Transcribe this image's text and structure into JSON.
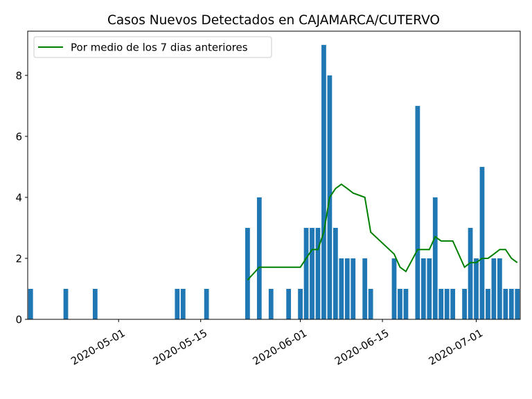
{
  "chart_data": {
    "type": "bar",
    "title": "Casos Nuevos Detectados en CAJAMARCA/CUTERVO",
    "xlabel": "",
    "ylabel": "",
    "x_start": "2020-04-16",
    "x_end": "2020-07-08",
    "ylim": [
      0,
      9.45
    ],
    "yticks": [
      0,
      2,
      4,
      6,
      8
    ],
    "xticks": [
      "2020-05-01",
      "2020-05-15",
      "2020-06-01",
      "2020-06-15",
      "2020-07-01"
    ],
    "grid": false,
    "legend_position": "top-left",
    "colors": {
      "bars": "#1f77b4",
      "line": "#008000"
    },
    "series": [
      {
        "kind": "bar",
        "points": [
          [
            "2020-04-16",
            1
          ],
          [
            "2020-04-22",
            1
          ],
          [
            "2020-04-27",
            1
          ],
          [
            "2020-05-11",
            1
          ],
          [
            "2020-05-12",
            1
          ],
          [
            "2020-05-16",
            1
          ],
          [
            "2020-05-23",
            3
          ],
          [
            "2020-05-25",
            4
          ],
          [
            "2020-05-27",
            1
          ],
          [
            "2020-05-30",
            1
          ],
          [
            "2020-06-01",
            1
          ],
          [
            "2020-06-02",
            3
          ],
          [
            "2020-06-03",
            3
          ],
          [
            "2020-06-04",
            3
          ],
          [
            "2020-06-05",
            9
          ],
          [
            "2020-06-06",
            8
          ],
          [
            "2020-06-07",
            3
          ],
          [
            "2020-06-08",
            2
          ],
          [
            "2020-06-09",
            2
          ],
          [
            "2020-06-10",
            2
          ],
          [
            "2020-06-12",
            2
          ],
          [
            "2020-06-13",
            1
          ],
          [
            "2020-06-17",
            2
          ],
          [
            "2020-06-18",
            1
          ],
          [
            "2020-06-19",
            1
          ],
          [
            "2020-06-21",
            7
          ],
          [
            "2020-06-22",
            2
          ],
          [
            "2020-06-23",
            2
          ],
          [
            "2020-06-24",
            4
          ],
          [
            "2020-06-25",
            1
          ],
          [
            "2020-06-26",
            1
          ],
          [
            "2020-06-27",
            1
          ],
          [
            "2020-06-29",
            1
          ],
          [
            "2020-06-30",
            3
          ],
          [
            "2020-07-01",
            2
          ],
          [
            "2020-07-02",
            5
          ],
          [
            "2020-07-03",
            1
          ],
          [
            "2020-07-04",
            2
          ],
          [
            "2020-07-05",
            2
          ],
          [
            "2020-07-06",
            1
          ],
          [
            "2020-07-07",
            1
          ],
          [
            "2020-07-08",
            1
          ]
        ]
      },
      {
        "kind": "line",
        "name": "Por medio de los 7 dias anteriores",
        "points": [
          [
            "2020-05-23",
            1.29
          ],
          [
            "2020-05-25",
            1.71
          ],
          [
            "2020-05-27",
            1.71
          ],
          [
            "2020-05-30",
            1.71
          ],
          [
            "2020-06-01",
            1.71
          ],
          [
            "2020-06-02",
            2.0
          ],
          [
            "2020-06-03",
            2.29
          ],
          [
            "2020-06-04",
            2.29
          ],
          [
            "2020-06-05",
            2.86
          ],
          [
            "2020-06-06",
            4.0
          ],
          [
            "2020-06-07",
            4.29
          ],
          [
            "2020-06-08",
            4.43
          ],
          [
            "2020-06-09",
            4.29
          ],
          [
            "2020-06-10",
            4.14
          ],
          [
            "2020-06-12",
            4.0
          ],
          [
            "2020-06-13",
            2.86
          ],
          [
            "2020-06-17",
            2.14
          ],
          [
            "2020-06-18",
            1.71
          ],
          [
            "2020-06-19",
            1.57
          ],
          [
            "2020-06-21",
            2.29
          ],
          [
            "2020-06-22",
            2.29
          ],
          [
            "2020-06-23",
            2.29
          ],
          [
            "2020-06-24",
            2.71
          ],
          [
            "2020-06-25",
            2.57
          ],
          [
            "2020-06-26",
            2.57
          ],
          [
            "2020-06-27",
            2.57
          ],
          [
            "2020-06-29",
            1.71
          ],
          [
            "2020-06-30",
            1.86
          ],
          [
            "2020-07-01",
            1.86
          ],
          [
            "2020-07-02",
            2.0
          ],
          [
            "2020-07-03",
            2.0
          ],
          [
            "2020-07-04",
            2.14
          ],
          [
            "2020-07-05",
            2.29
          ],
          [
            "2020-07-06",
            2.29
          ],
          [
            "2020-07-07",
            2.0
          ],
          [
            "2020-07-08",
            1.86
          ]
        ]
      }
    ]
  }
}
